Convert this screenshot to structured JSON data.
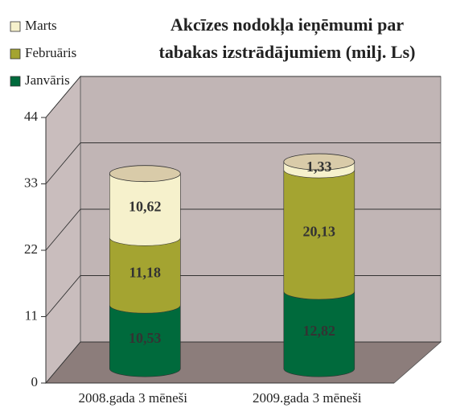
{
  "chart_data": {
    "type": "bar3d-cylinder-stacked",
    "title": [
      "Akcīzes nodokļa ieņēmumi par",
      "tabakas izstrādājumiem (milj. Ls)"
    ],
    "categories": [
      "2008.gada 3 mēneši",
      "2009.gada 3 mēneši"
    ],
    "series": [
      {
        "name": "Janvāris",
        "color": "#006a3c",
        "values": [
          10.53,
          12.82
        ],
        "value_labels": [
          "10,53",
          "12,82"
        ]
      },
      {
        "name": "Februāris",
        "color": "#a4a431",
        "values": [
          11.18,
          20.13
        ],
        "value_labels": [
          "11,18",
          "20,13"
        ]
      },
      {
        "name": "Marts",
        "color": "#f6f1cc",
        "values": [
          10.62,
          1.33
        ],
        "value_labels": [
          "10,62",
          "1,33"
        ]
      }
    ],
    "ylim": [
      0,
      44
    ],
    "yticks": [
      0,
      11,
      22,
      33,
      44
    ],
    "grid": true,
    "legend": "top-left"
  }
}
